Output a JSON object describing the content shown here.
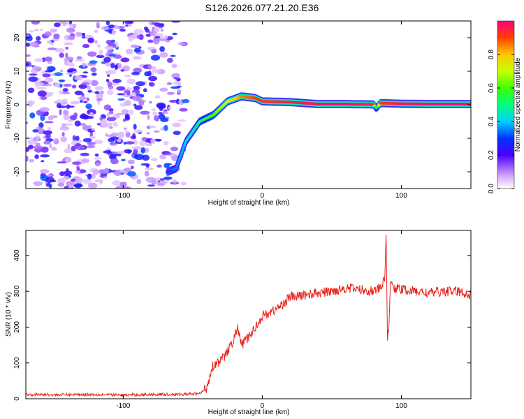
{
  "title": "S126.2026.077.21.20.E36",
  "chart_data": [
    {
      "type": "heatmap",
      "xlabel": "Height of straight line (km)",
      "ylabel": "Frequency (Hz)",
      "xlim": [
        -170,
        150
      ],
      "ylim": [
        -25,
        25
      ],
      "x_ticks": [
        -100,
        0,
        100
      ],
      "y_ticks": [
        -20,
        -10,
        0,
        10,
        20
      ],
      "colorbar": {
        "label": "Normalized spectral amplitude",
        "range": [
          0,
          1
        ],
        "ticks": [
          0.0,
          0.2,
          0.4,
          0.6,
          0.8
        ],
        "tick_labels": [
          "0.0",
          "0.2",
          "0.4",
          "0.6",
          "0.8"
        ]
      },
      "ridge": {
        "x": [
          -68,
          -62,
          -55,
          -45,
          -35,
          -25,
          -15,
          -5,
          0,
          20,
          40,
          60,
          80,
          82,
          85,
          100,
          120,
          150
        ],
        "y": [
          -20,
          -19,
          -11,
          -5,
          -3,
          1,
          2.5,
          2,
          1,
          0.8,
          0.2,
          0.2,
          0.1,
          -1,
          0.5,
          0.3,
          0.2,
          0.2
        ],
        "amplitude": [
          0.3,
          0.35,
          0.4,
          0.5,
          0.6,
          0.7,
          0.85,
          0.9,
          0.92,
          0.95,
          0.97,
          0.98,
          0.95,
          0.4,
          0.9,
          0.97,
          0.98,
          0.98
        ]
      },
      "noise_region_x": [
        -170,
        -55
      ]
    },
    {
      "type": "line",
      "xlabel": "Height of straight line (km)",
      "ylabel": "SNR (10 * v/v)",
      "xlim": [
        -170,
        150
      ],
      "ylim": [
        0,
        470
      ],
      "x_ticks": [
        -100,
        0,
        100
      ],
      "y_ticks": [
        0,
        100,
        200,
        300,
        400
      ],
      "color": "#e8241e",
      "series": [
        {
          "x": [
            -170,
            -150,
            -120,
            -100,
            -80,
            -60,
            -45,
            -40,
            -36,
            -33,
            -30,
            -25,
            -20,
            -18,
            -15,
            -10,
            -5,
            0,
            5,
            10,
            15,
            20,
            25,
            30,
            40,
            50,
            60,
            70,
            80,
            85,
            88,
            89,
            90,
            91,
            92,
            95,
            100,
            110,
            120,
            130,
            140,
            150
          ],
          "y": [
            12,
            11,
            12,
            10,
            12,
            12,
            14,
            30,
            90,
            100,
            105,
            130,
            170,
            200,
            150,
            170,
            200,
            230,
            240,
            250,
            265,
            285,
            285,
            290,
            295,
            300,
            310,
            305,
            300,
            310,
            330,
            470,
            160,
            200,
            320,
            310,
            305,
            300,
            295,
            300,
            300,
            290
          ]
        }
      ]
    }
  ]
}
